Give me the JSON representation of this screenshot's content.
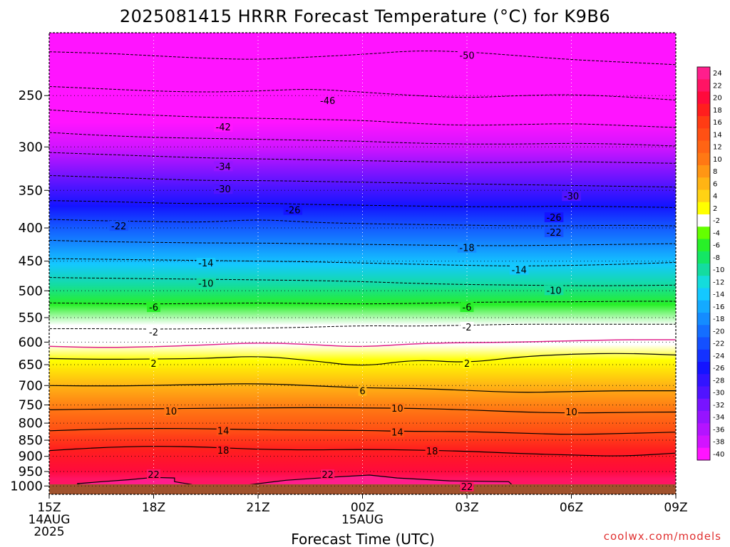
{
  "chart_data": {
    "type": "heatmap",
    "title": "2025081415 HRRR Forecast Temperature (°C) for K9B6",
    "xlabel": "Forecast Time (UTC)",
    "ylabel": "",
    "credit": "coolwx.com/models",
    "y_scale": "log-pressure",
    "ylim": [
      1030,
      200
    ],
    "y_ticks": [
      250,
      300,
      350,
      400,
      450,
      500,
      550,
      600,
      650,
      700,
      750,
      800,
      850,
      900,
      950,
      1000
    ],
    "xlim": [
      0,
      18
    ],
    "x_ticks": [
      {
        "hour": 0,
        "lines": [
          "15Z",
          "14AUG",
          "2025"
        ]
      },
      {
        "hour": 3,
        "lines": [
          "18Z"
        ]
      },
      {
        "hour": 6,
        "lines": [
          "21Z"
        ]
      },
      {
        "hour": 9,
        "lines": [
          "00Z",
          "15AUG"
        ]
      },
      {
        "hour": 12,
        "lines": [
          "03Z"
        ]
      },
      {
        "hour": 15,
        "lines": [
          "06Z"
        ]
      },
      {
        "hour": 18,
        "lines": [
          "09Z"
        ]
      }
    ],
    "colorbar": {
      "labels": [
        "24",
        "22",
        "20",
        "18",
        "16",
        "14",
        "12",
        "10",
        "8",
        "6",
        "4",
        "2",
        "-2",
        "-4",
        "-6",
        "-8",
        "-10",
        "-12",
        "-14",
        "-16",
        "-18",
        "-20",
        "-22",
        "-24",
        "-26",
        "-28",
        "-30",
        "-32",
        "-34",
        "-36",
        "-38",
        "-40"
      ],
      "colors": [
        "#ff1e8c",
        "#ff1464",
        "#ff0a3c",
        "#ff1e1e",
        "#ff3c14",
        "#ff5014",
        "#ff6414",
        "#ff7814",
        "#ff9614",
        "#ffb414",
        "#ffd214",
        "#ffff00",
        "#ffffff",
        "#64ff00",
        "#28f028",
        "#14e664",
        "#14dca0",
        "#14dcdc",
        "#14c8ff",
        "#14aaff",
        "#148cff",
        "#146eff",
        "#1450ff",
        "#1432ff",
        "#1414ff",
        "#3214ff",
        "#5014ff",
        "#7814ff",
        "#9614ff",
        "#b414ff",
        "#d214ff",
        "#ff14ff"
      ]
    },
    "isotherm_profile": [
      {
        "p": 200,
        "t": -55
      },
      {
        "p": 220,
        "t": -52
      },
      {
        "p": 250,
        "t": -46
      },
      {
        "p": 275,
        "t": -42
      },
      {
        "p": 300,
        "t": -37
      },
      {
        "p": 320,
        "t": -34
      },
      {
        "p": 345,
        "t": -30
      },
      {
        "p": 370,
        "t": -26
      },
      {
        "p": 395,
        "t": -22
      },
      {
        "p": 425,
        "t": -18
      },
      {
        "p": 455,
        "t": -14
      },
      {
        "p": 490,
        "t": -10
      },
      {
        "p": 525,
        "t": -6
      },
      {
        "p": 565,
        "t": -2
      },
      {
        "p": 605,
        "t": 0
      },
      {
        "p": 640,
        "t": 2
      },
      {
        "p": 700,
        "t": 6
      },
      {
        "p": 760,
        "t": 10
      },
      {
        "p": 820,
        "t": 14
      },
      {
        "p": 880,
        "t": 18
      },
      {
        "p": 950,
        "t": 21
      },
      {
        "p": 975,
        "t": 22
      },
      {
        "p": 1010,
        "t": 23
      }
    ],
    "contours": [
      {
        "label": "-50",
        "style": "dashed",
        "p": [
          214,
          215,
          217,
          219,
          220,
          218,
          216,
          213,
          214,
          217,
          220,
          222,
          224
        ]
      },
      {
        "label": "-46",
        "style": "dashed",
        "p": [
          242,
          244,
          246,
          247,
          246,
          244,
          247,
          250,
          252,
          250,
          249,
          251,
          254
        ]
      },
      {
        "label": "-42",
        "style": "dashed",
        "p": [
          263,
          266,
          268,
          270,
          271,
          272,
          273,
          276,
          278,
          277,
          276,
          278,
          280
        ]
      },
      {
        "label": "-38",
        "style": "dashed",
        "p": [
          285,
          288,
          290,
          291,
          292,
          293,
          294,
          296,
          297,
          297,
          296,
          297,
          299
        ]
      },
      {
        "label": "-34",
        "style": "dashed",
        "p": [
          306,
          308,
          310,
          312,
          313,
          314,
          315,
          316,
          317,
          317,
          316,
          317,
          318
        ]
      },
      {
        "label": "-30",
        "style": "dashed",
        "p": [
          332,
          334,
          336,
          338,
          338,
          339,
          340,
          341,
          342,
          343,
          344,
          345,
          346
        ]
      },
      {
        "label": "-26",
        "style": "dashed",
        "p": [
          363,
          364,
          366,
          367,
          366,
          368,
          369,
          370,
          371,
          371,
          370,
          371,
          372
        ]
      },
      {
        "label": "-22",
        "style": "dashed",
        "p": [
          388,
          390,
          391,
          392,
          388,
          392,
          394,
          395,
          396,
          397,
          397,
          396,
          397
        ]
      },
      {
        "label": "-18",
        "style": "dashed",
        "p": [
          418,
          420,
          421,
          422,
          422,
          423,
          424,
          425,
          426,
          426,
          425,
          424,
          423
        ]
      },
      {
        "label": "-14",
        "style": "dashed",
        "p": [
          446,
          447,
          448,
          449,
          450,
          451,
          453,
          455,
          457,
          458,
          457,
          455,
          452
        ]
      },
      {
        "label": "-10",
        "style": "dashed",
        "p": [
          477,
          478,
          479,
          480,
          481,
          482,
          484,
          487,
          489,
          490,
          491,
          491,
          490
        ]
      },
      {
        "label": "-6",
        "style": "dashed",
        "p": [
          522,
          523,
          524,
          523,
          522,
          523,
          524,
          523,
          521,
          520,
          520,
          519,
          519
        ]
      },
      {
        "label": "-2",
        "style": "dashed",
        "p": [
          572,
          572,
          573,
          572,
          571,
          569,
          566,
          567,
          565,
          563,
          563,
          563,
          563
        ]
      },
      {
        "label": "0",
        "style": "freezing",
        "p": [
          609,
          612,
          610,
          606,
          601,
          605,
          611,
          603,
          601,
          600,
          597,
          595,
          595
        ]
      },
      {
        "label": "2",
        "style": "solid",
        "p": [
          636,
          638,
          637,
          636,
          630,
          640,
          655,
          638,
          646,
          632,
          626,
          624,
          628
        ]
      },
      {
        "label": "6",
        "style": "solid",
        "p": [
          700,
          701,
          700,
          697,
          695,
          700,
          706,
          707,
          712,
          718,
          715,
          713,
          713
        ]
      },
      {
        "label": "10",
        "style": "solid",
        "p": [
          763,
          761,
          760,
          759,
          758,
          757,
          758,
          759,
          763,
          769,
          772,
          770,
          769
        ]
      },
      {
        "label": "14",
        "style": "solid",
        "p": [
          822,
          817,
          815,
          816,
          819,
          820,
          821,
          824,
          824,
          829,
          833,
          830,
          826
        ]
      },
      {
        "label": "18",
        "style": "solid",
        "p": [
          882,
          872,
          868,
          871,
          878,
          880,
          878,
          880,
          884,
          891,
          896,
          900,
          890
        ]
      }
    ],
    "contour_labels": [
      {
        "text": "-50",
        "hour": 12.0,
        "p": 217
      },
      {
        "text": "-46",
        "hour": 8.0,
        "p": 255
      },
      {
        "text": "-42",
        "hour": 5.0,
        "p": 280
      },
      {
        "text": "-34",
        "hour": 5.0,
        "p": 322
      },
      {
        "text": "-30",
        "hour": 5.0,
        "p": 349
      },
      {
        "text": "-30",
        "hour": 15.0,
        "p": 358
      },
      {
        "text": "-26",
        "hour": 7.0,
        "p": 376
      },
      {
        "text": "-26",
        "hour": 14.5,
        "p": 386
      },
      {
        "text": "-22",
        "hour": 2.0,
        "p": 398
      },
      {
        "text": "-22",
        "hour": 14.5,
        "p": 407
      },
      {
        "text": "-18",
        "hour": 12.0,
        "p": 430
      },
      {
        "text": "-14",
        "hour": 4.5,
        "p": 454
      },
      {
        "text": "-14",
        "hour": 13.5,
        "p": 465
      },
      {
        "text": "-10",
        "hour": 4.5,
        "p": 488
      },
      {
        "text": "-10",
        "hour": 14.5,
        "p": 500
      },
      {
        "text": "-6",
        "hour": 3.0,
        "p": 531
      },
      {
        "text": "-6",
        "hour": 12.0,
        "p": 531
      },
      {
        "text": "-2",
        "hour": 3.0,
        "p": 580
      },
      {
        "text": "-2",
        "hour": 12.0,
        "p": 570
      },
      {
        "text": "2",
        "hour": 3.0,
        "p": 648
      },
      {
        "text": "2",
        "hour": 12.0,
        "p": 648
      },
      {
        "text": "6",
        "hour": 9.0,
        "p": 715
      },
      {
        "text": "10",
        "hour": 3.5,
        "p": 768
      },
      {
        "text": "10",
        "hour": 10.0,
        "p": 760
      },
      {
        "text": "10",
        "hour": 15.0,
        "p": 770
      },
      {
        "text": "14",
        "hour": 5.0,
        "p": 823
      },
      {
        "text": "14",
        "hour": 10.0,
        "p": 828
      },
      {
        "text": "18",
        "hour": 5.0,
        "p": 883
      },
      {
        "text": "18",
        "hour": 11.0,
        "p": 885
      },
      {
        "text": "22",
        "hour": 3.0,
        "p": 962
      },
      {
        "text": "22",
        "hour": 8.0,
        "p": 962
      },
      {
        "text": "22",
        "hour": 12.0,
        "p": 1004
      }
    ],
    "warm_pockets": [
      {
        "label": "22",
        "points": [
          [
            0.8,
            992
          ],
          [
            1.5,
            985
          ],
          [
            2.3,
            978
          ],
          [
            3.0,
            970
          ],
          [
            3.6,
            972
          ],
          [
            3.6,
            985
          ],
          [
            4.1,
            995
          ],
          [
            3.5,
            1003
          ],
          [
            2.0,
            1006
          ],
          [
            1.0,
            1002
          ]
        ]
      },
      {
        "label": "22",
        "points": [
          [
            5.8,
            995
          ],
          [
            6.8,
            980
          ],
          [
            8.0,
            970
          ],
          [
            9.2,
            962
          ],
          [
            10.0,
            972
          ],
          [
            11.5,
            982
          ],
          [
            13.2,
            985
          ],
          [
            13.3,
            997
          ],
          [
            12.0,
            1005
          ],
          [
            9.0,
            1008
          ],
          [
            7.0,
            1006
          ],
          [
            5.9,
            1002
          ]
        ]
      }
    ],
    "grid": true,
    "legend": "right"
  }
}
